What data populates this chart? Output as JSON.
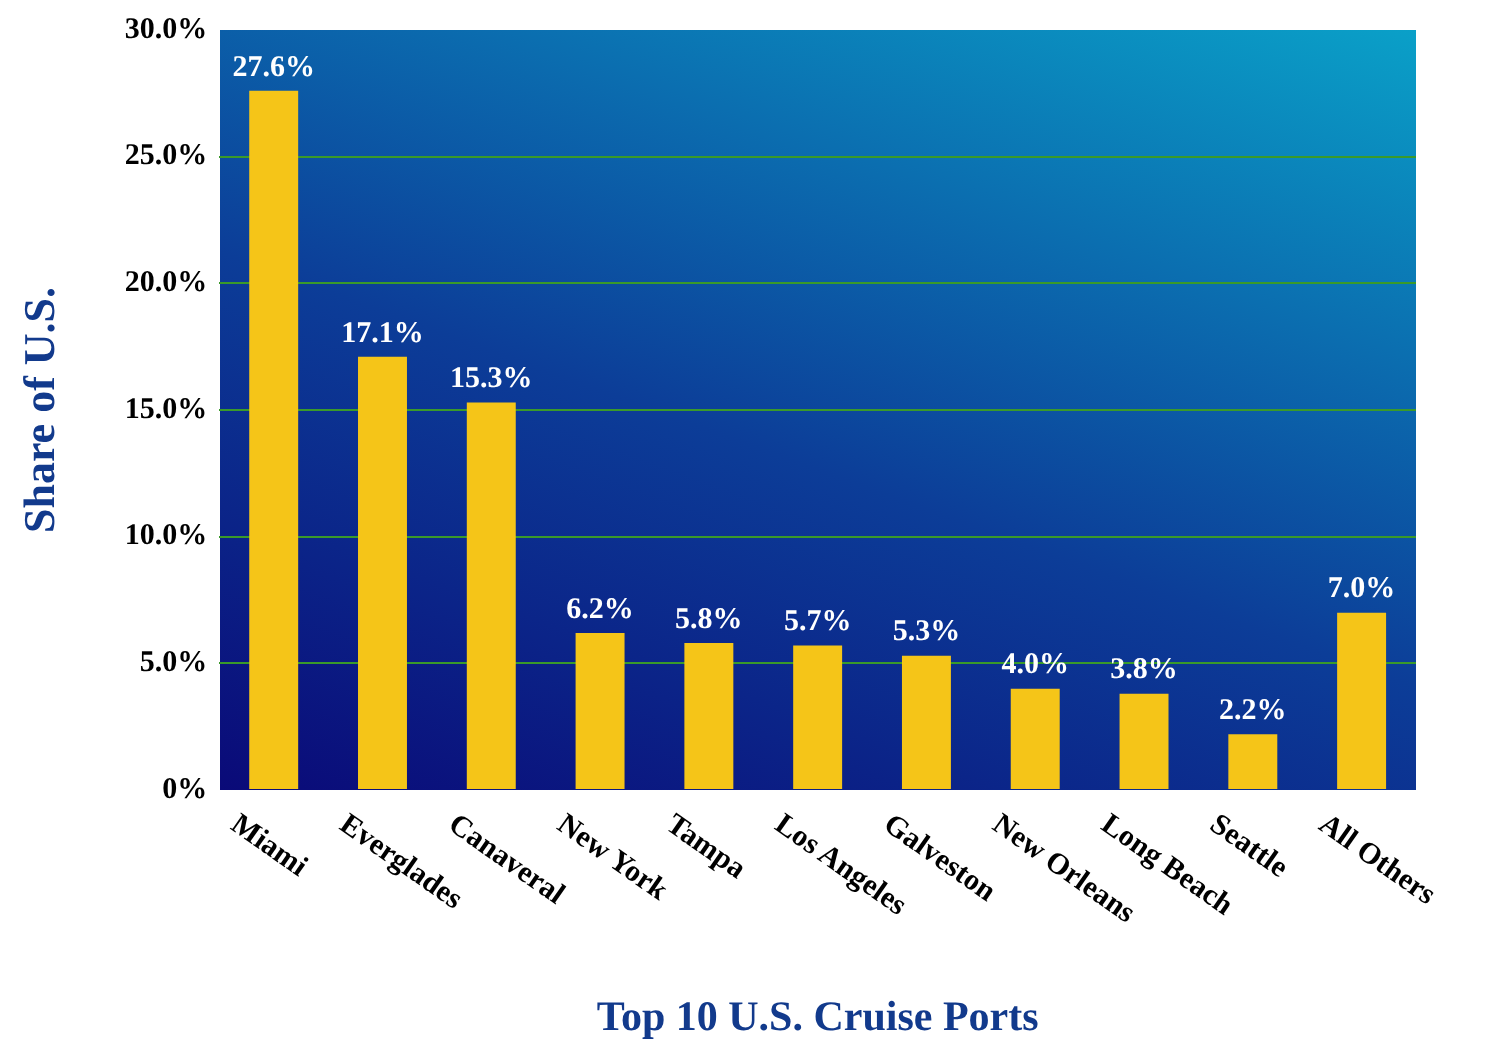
{
  "chart_data": {
    "type": "bar",
    "xlabel": "Top 10 U.S. Cruise Ports",
    "ylabel": "Share of U.S.",
    "categories": [
      "Miami",
      "Everglades",
      "Canaveral",
      "New York",
      "Tampa",
      "Los Angeles",
      "Galveston",
      "New Orleans",
      "Long Beach",
      "Seattle",
      "All Others"
    ],
    "values": [
      27.6,
      17.1,
      15.3,
      6.2,
      5.8,
      5.7,
      5.3,
      4.0,
      3.8,
      2.2,
      7.0
    ],
    "value_labels": [
      "27.6%",
      "17.1%",
      "15.3%",
      "6.2%",
      "5.8%",
      "5.7%",
      "5.3%",
      "4.0%",
      "3.8%",
      "2.2%",
      "7.0%"
    ],
    "color": "#f5c518",
    "ylim": [
      0,
      30
    ],
    "yticks": [
      {
        "value": 0,
        "label": "0%"
      },
      {
        "value": 5,
        "label": "5.0%"
      },
      {
        "value": 10,
        "label": "10.0%"
      },
      {
        "value": 15,
        "label": "15.0%"
      },
      {
        "value": 20,
        "label": "20.0%"
      },
      {
        "value": 25,
        "label": "25.0%"
      },
      {
        "value": 30,
        "label": "30.0%"
      }
    ],
    "grid": "y"
  }
}
